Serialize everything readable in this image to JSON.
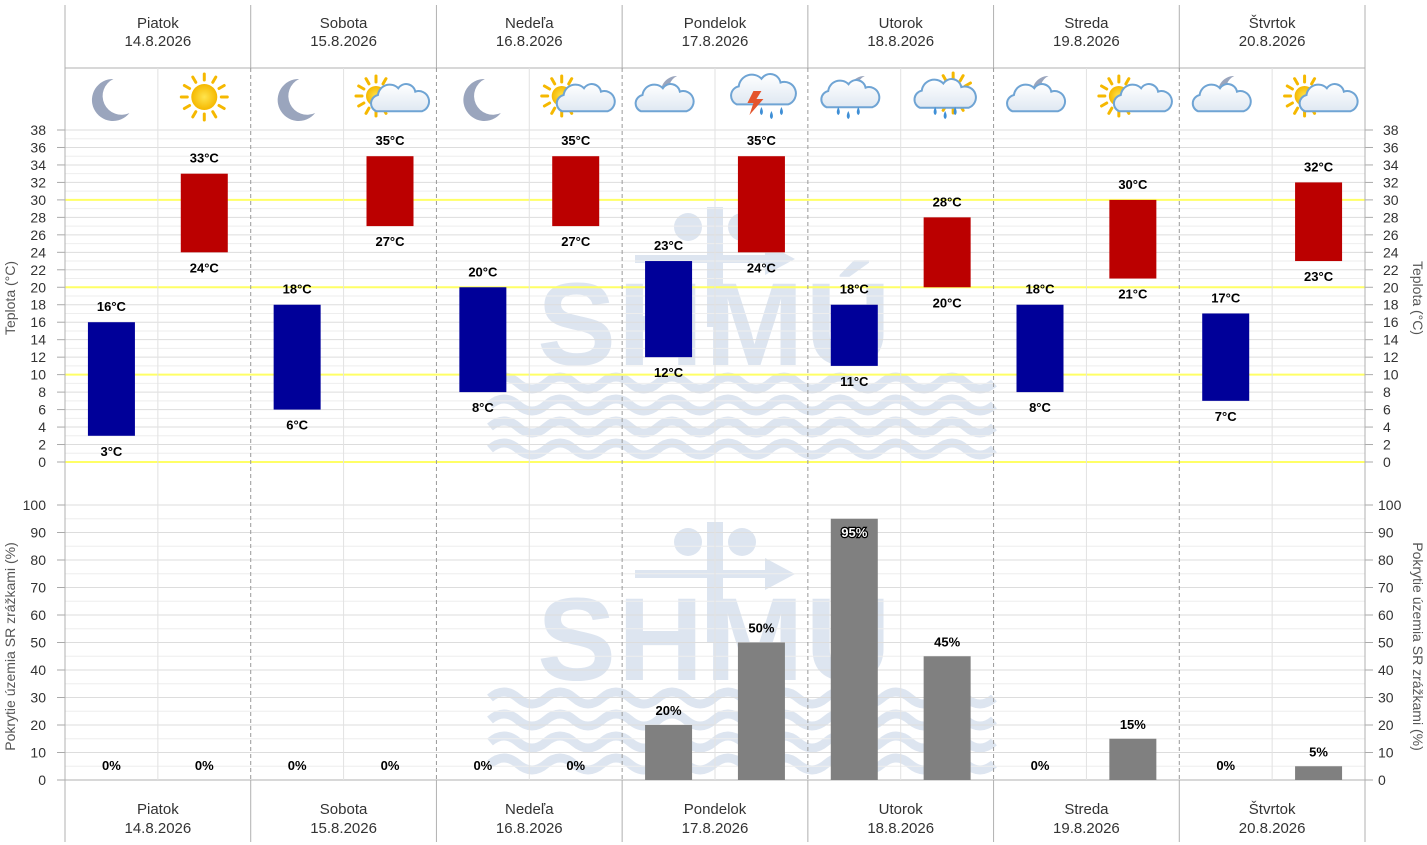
{
  "days": [
    {
      "name": "Piatok",
      "date": "14.8.2026"
    },
    {
      "name": "Sobota",
      "date": "15.8.2026"
    },
    {
      "name": "Nedeľa",
      "date": "16.8.2026"
    },
    {
      "name": "Pondelok",
      "date": "17.8.2026"
    },
    {
      "name": "Utorok",
      "date": "18.8.2026"
    },
    {
      "name": "Streda",
      "date": "19.8.2026"
    },
    {
      "name": "Štvrtok",
      "date": "20.8.2026"
    }
  ],
  "icons": [
    [
      "moon-icon",
      "sun-icon"
    ],
    [
      "moon-icon",
      "sun-cloud-icon"
    ],
    [
      "moon-icon",
      "sun-cloud-icon"
    ],
    [
      "moon-cloud-icon",
      "thunderstorm-icon"
    ],
    [
      "rain-moon-cloud-icon",
      "rain-sun-cloud-icon"
    ],
    [
      "moon-cloud-icon",
      "sun-cloud-icon"
    ],
    [
      "moon-cloud-icon",
      "sun-cloud-icon"
    ]
  ],
  "watermark": "SHMÚ",
  "colors": {
    "night": "#000099",
    "day": "#bb0000",
    "precip": "#808080",
    "highlight_grid": "#ffff66",
    "watermark": "#dde5f0"
  },
  "chart_data": [
    {
      "type": "bar",
      "ylabel": "Teplota (°C)",
      "ylim": [
        0,
        38
      ],
      "yticks": [
        0,
        2,
        4,
        6,
        8,
        10,
        12,
        14,
        16,
        18,
        20,
        22,
        24,
        26,
        28,
        30,
        32,
        34,
        36,
        38
      ],
      "highlight_lines": [
        0,
        10,
        20,
        30
      ],
      "unit": "°C",
      "series": [
        {
          "name": "",
          "part": "night",
          "min": [
            3,
            6,
            8,
            12,
            11,
            8,
            7
          ],
          "max": [
            16,
            18,
            20,
            23,
            18,
            18,
            17
          ]
        },
        {
          "name": "",
          "part": "day",
          "min": [
            24,
            27,
            27,
            24,
            20,
            21,
            23
          ],
          "max": [
            33,
            35,
            35,
            35,
            28,
            30,
            32
          ]
        }
      ]
    },
    {
      "type": "bar",
      "ylabel": "Pokrytie územia SR zrážkami (%)",
      "ylim": [
        0,
        100
      ],
      "yticks": [
        0,
        10,
        20,
        30,
        40,
        50,
        60,
        70,
        80,
        90,
        100
      ],
      "unit": "%",
      "values": [
        [
          0,
          0
        ],
        [
          0,
          0
        ],
        [
          0,
          0
        ],
        [
          20,
          50
        ],
        [
          95,
          45
        ],
        [
          0,
          15
        ],
        [
          0,
          5
        ]
      ]
    }
  ]
}
